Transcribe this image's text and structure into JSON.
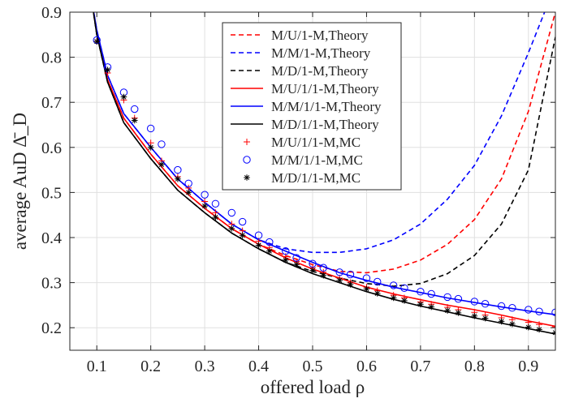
{
  "chart_data": {
    "type": "line",
    "title": "",
    "xlabel": "offered load ρ",
    "ylabel": "average AuD Δ̄_D",
    "xlim": [
      0.05,
      0.95
    ],
    "ylim": [
      0.15,
      0.9
    ],
    "xticks": [
      "0.1",
      "0.2",
      "0.3",
      "0.4",
      "0.5",
      "0.6",
      "0.7",
      "0.8",
      "0.9"
    ],
    "yticks": [
      "0.2",
      "0.3",
      "0.4",
      "0.5",
      "0.6",
      "0.7",
      "0.8",
      "0.9"
    ],
    "grid": true,
    "legend_position": "top-right",
    "series": [
      {
        "name": "M/U/1-M,Theory",
        "style": "dashed",
        "color": "#ff0000",
        "x": [
          0.09,
          0.1,
          0.12,
          0.15,
          0.2,
          0.25,
          0.3,
          0.35,
          0.4,
          0.45,
          0.5,
          0.55,
          0.6,
          0.65,
          0.7,
          0.75,
          0.8,
          0.85,
          0.9,
          0.95
        ],
        "y": [
          0.93,
          0.855,
          0.75,
          0.665,
          0.585,
          0.515,
          0.465,
          0.42,
          0.385,
          0.36,
          0.34,
          0.325,
          0.322,
          0.33,
          0.35,
          0.385,
          0.44,
          0.53,
          0.68,
          0.9
        ]
      },
      {
        "name": "M/M/1-M,Theory",
        "style": "dashed",
        "color": "#0000ff",
        "x": [
          0.09,
          0.1,
          0.12,
          0.15,
          0.2,
          0.25,
          0.3,
          0.35,
          0.4,
          0.45,
          0.5,
          0.55,
          0.6,
          0.65,
          0.7,
          0.75,
          0.8,
          0.85,
          0.9,
          0.93
        ],
        "y": [
          0.93,
          0.86,
          0.76,
          0.675,
          0.6,
          0.53,
          0.478,
          0.43,
          0.395,
          0.375,
          0.367,
          0.367,
          0.375,
          0.395,
          0.43,
          0.485,
          0.56,
          0.67,
          0.81,
          0.9
        ]
      },
      {
        "name": "M/D/1-M,Theory",
        "style": "dashed",
        "color": "#000000",
        "x": [
          0.09,
          0.1,
          0.12,
          0.15,
          0.2,
          0.25,
          0.3,
          0.35,
          0.4,
          0.45,
          0.5,
          0.55,
          0.6,
          0.65,
          0.7,
          0.75,
          0.8,
          0.85,
          0.9,
          0.95
        ],
        "y": [
          0.93,
          0.85,
          0.745,
          0.655,
          0.575,
          0.505,
          0.455,
          0.41,
          0.375,
          0.345,
          0.325,
          0.31,
          0.298,
          0.292,
          0.298,
          0.32,
          0.36,
          0.43,
          0.55,
          0.845
        ]
      },
      {
        "name": "M/U/1/1-M,Theory",
        "style": "solid",
        "color": "#ff0000",
        "x": [
          0.09,
          0.1,
          0.12,
          0.15,
          0.2,
          0.25,
          0.3,
          0.35,
          0.4,
          0.45,
          0.5,
          0.55,
          0.6,
          0.65,
          0.7,
          0.75,
          0.8,
          0.85,
          0.9,
          0.95
        ],
        "y": [
          0.93,
          0.855,
          0.75,
          0.665,
          0.585,
          0.515,
          0.465,
          0.42,
          0.385,
          0.355,
          0.33,
          0.31,
          0.29,
          0.275,
          0.262,
          0.25,
          0.24,
          0.228,
          0.215,
          0.203
        ]
      },
      {
        "name": "M/M/1/1-M,Theory",
        "style": "solid",
        "color": "#0000ff",
        "x": [
          0.09,
          0.1,
          0.12,
          0.15,
          0.2,
          0.25,
          0.3,
          0.35,
          0.4,
          0.45,
          0.5,
          0.55,
          0.6,
          0.65,
          0.7,
          0.75,
          0.8,
          0.85,
          0.9,
          0.95
        ],
        "y": [
          0.93,
          0.86,
          0.76,
          0.675,
          0.6,
          0.53,
          0.478,
          0.43,
          0.395,
          0.37,
          0.345,
          0.322,
          0.305,
          0.29,
          0.278,
          0.266,
          0.256,
          0.246,
          0.237,
          0.229
        ]
      },
      {
        "name": "M/D/1/1-M,Theory",
        "style": "solid",
        "color": "#000000",
        "x": [
          0.09,
          0.1,
          0.12,
          0.15,
          0.2,
          0.25,
          0.3,
          0.35,
          0.4,
          0.45,
          0.5,
          0.55,
          0.6,
          0.65,
          0.7,
          0.75,
          0.8,
          0.85,
          0.9,
          0.95
        ],
        "y": [
          0.93,
          0.85,
          0.745,
          0.655,
          0.575,
          0.505,
          0.455,
          0.41,
          0.375,
          0.345,
          0.32,
          0.3,
          0.28,
          0.263,
          0.248,
          0.235,
          0.222,
          0.21,
          0.198,
          0.186
        ]
      },
      {
        "name": "M/U/1/1-M,MC",
        "style": "marker",
        "marker": "plus",
        "color": "#ff0000",
        "x": [
          0.1,
          0.12,
          0.15,
          0.17,
          0.2,
          0.22,
          0.25,
          0.27,
          0.3,
          0.32,
          0.35,
          0.37,
          0.4,
          0.42,
          0.45,
          0.47,
          0.5,
          0.52,
          0.55,
          0.57,
          0.6,
          0.62,
          0.65,
          0.67,
          0.7,
          0.72,
          0.75,
          0.77,
          0.8,
          0.82,
          0.85,
          0.87,
          0.9,
          0.92,
          0.95
        ],
        "y": [
          0.835,
          0.765,
          0.705,
          0.665,
          0.61,
          0.57,
          0.535,
          0.51,
          0.48,
          0.455,
          0.43,
          0.415,
          0.392,
          0.378,
          0.358,
          0.347,
          0.333,
          0.323,
          0.31,
          0.3,
          0.29,
          0.282,
          0.272,
          0.266,
          0.257,
          0.252,
          0.245,
          0.24,
          0.234,
          0.228,
          0.222,
          0.218,
          0.212,
          0.207,
          0.202
        ]
      },
      {
        "name": "M/M/1/1-M,MC",
        "style": "marker",
        "marker": "circle",
        "color": "#0000ff",
        "x": [
          0.1,
          0.12,
          0.15,
          0.17,
          0.2,
          0.22,
          0.25,
          0.27,
          0.3,
          0.32,
          0.35,
          0.37,
          0.4,
          0.42,
          0.45,
          0.47,
          0.5,
          0.52,
          0.55,
          0.57,
          0.6,
          0.62,
          0.65,
          0.67,
          0.7,
          0.72,
          0.75,
          0.77,
          0.8,
          0.82,
          0.85,
          0.87,
          0.9,
          0.92,
          0.95
        ],
        "y": [
          0.838,
          0.778,
          0.722,
          0.685,
          0.642,
          0.607,
          0.55,
          0.52,
          0.495,
          0.475,
          0.455,
          0.435,
          0.405,
          0.39,
          0.37,
          0.355,
          0.342,
          0.333,
          0.323,
          0.318,
          0.31,
          0.302,
          0.294,
          0.288,
          0.28,
          0.275,
          0.268,
          0.264,
          0.258,
          0.253,
          0.248,
          0.244,
          0.24,
          0.236,
          0.234
        ]
      },
      {
        "name": "M/D/1/1-M,MC",
        "style": "marker",
        "marker": "asterisk",
        "color": "#000000",
        "x": [
          0.1,
          0.12,
          0.15,
          0.17,
          0.2,
          0.22,
          0.25,
          0.27,
          0.3,
          0.32,
          0.35,
          0.37,
          0.4,
          0.42,
          0.45,
          0.47,
          0.5,
          0.52,
          0.55,
          0.57,
          0.6,
          0.62,
          0.65,
          0.67,
          0.7,
          0.72,
          0.75,
          0.77,
          0.8,
          0.82,
          0.85,
          0.87,
          0.9,
          0.92,
          0.95
        ],
        "y": [
          0.835,
          0.772,
          0.712,
          0.66,
          0.6,
          0.562,
          0.53,
          0.5,
          0.47,
          0.445,
          0.42,
          0.405,
          0.383,
          0.37,
          0.35,
          0.34,
          0.327,
          0.316,
          0.305,
          0.296,
          0.286,
          0.276,
          0.266,
          0.26,
          0.252,
          0.246,
          0.238,
          0.233,
          0.226,
          0.221,
          0.214,
          0.208,
          0.201,
          0.196,
          0.189
        ]
      }
    ]
  }
}
